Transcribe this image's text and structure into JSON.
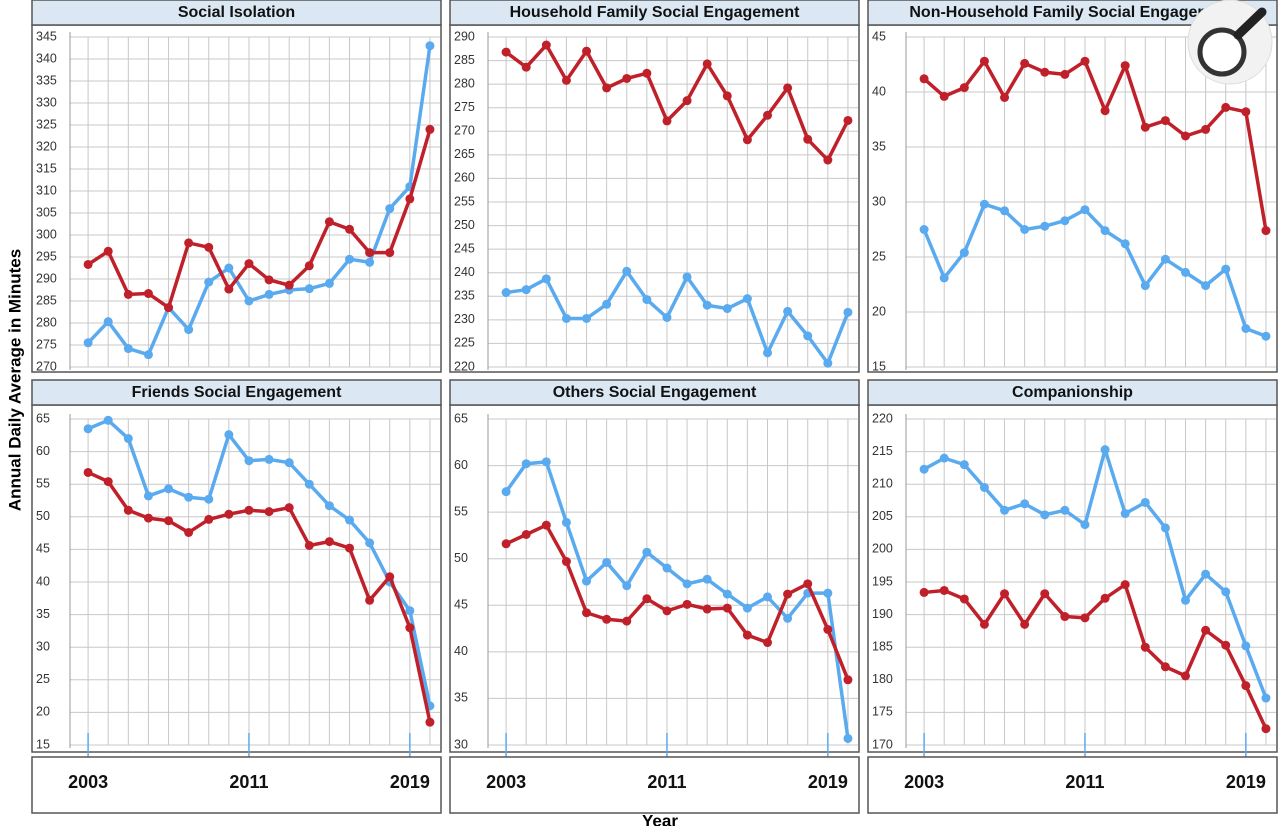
{
  "ylabel": "Annual Daily Average in Minutes",
  "xlabel": "Year",
  "chart_data": [
    {
      "type": "line",
      "title": "Social Isolation",
      "x": [
        2003,
        2004,
        2005,
        2006,
        2007,
        2008,
        2009,
        2010,
        2011,
        2012,
        2013,
        2014,
        2015,
        2016,
        2017,
        2018,
        2019,
        2020
      ],
      "xlim": [
        2002.1,
        2020.5
      ],
      "ylim": [
        270,
        345
      ],
      "yticks": [
        270,
        275,
        280,
        285,
        290,
        295,
        300,
        305,
        310,
        315,
        320,
        325,
        330,
        335,
        340,
        345
      ],
      "grid": true,
      "series": [
        {
          "color": "#5aaaf0",
          "values": [
            275.5,
            280.3,
            274.2,
            272.8,
            283.5,
            278.5,
            289.3,
            292.5,
            285,
            286.5,
            287.5,
            287.8,
            289,
            294.5,
            293.8,
            306,
            311,
            343
          ]
        },
        {
          "color": "#c0202a",
          "values": [
            293.3,
            296.3,
            286.5,
            286.7,
            283.5,
            298.2,
            297.2,
            287.7,
            293.5,
            289.8,
            288.6,
            293,
            303,
            301.3,
            296,
            296,
            308.2,
            324
          ]
        }
      ]
    },
    {
      "type": "line",
      "title": "Household Family Social Engagement",
      "x": [
        2003,
        2004,
        2005,
        2006,
        2007,
        2008,
        2009,
        2010,
        2011,
        2012,
        2013,
        2014,
        2015,
        2016,
        2017,
        2018,
        2019,
        2020
      ],
      "xlim": [
        2002.1,
        2020.5
      ],
      "ylim": [
        220,
        290
      ],
      "yticks": [
        220,
        225,
        230,
        235,
        240,
        245,
        250,
        255,
        260,
        265,
        270,
        275,
        280,
        285,
        290
      ],
      "grid": true,
      "series": [
        {
          "color": "#5aaaf0",
          "values": [
            235.8,
            236.4,
            238.7,
            230.3,
            230.3,
            233.3,
            240.3,
            234.3,
            230.5,
            239.1,
            233.1,
            232.4,
            234.5,
            223,
            231.8,
            226.6,
            220.8,
            231.6
          ]
        },
        {
          "color": "#c0202a",
          "values": [
            286.8,
            283.6,
            288.3,
            280.8,
            287,
            279.2,
            281.2,
            282.3,
            272.2,
            276.5,
            284.3,
            277.5,
            268.2,
            273.4,
            279.2,
            268.3,
            263.9,
            272.3
          ]
        }
      ]
    },
    {
      "type": "line",
      "title": "Non-Household Family Social Engagement",
      "x": [
        2003,
        2004,
        2005,
        2006,
        2007,
        2008,
        2009,
        2010,
        2011,
        2012,
        2013,
        2014,
        2015,
        2016,
        2017,
        2018,
        2019,
        2020
      ],
      "xlim": [
        2002.1,
        2020.5
      ],
      "ylim": [
        15,
        45
      ],
      "yticks": [
        15,
        20,
        25,
        30,
        35,
        40,
        45
      ],
      "grid": true,
      "series": [
        {
          "color": "#5aaaf0",
          "values": [
            27.5,
            23.1,
            25.4,
            29.8,
            29.2,
            27.5,
            27.8,
            28.3,
            29.3,
            27.4,
            26.2,
            22.4,
            24.8,
            23.6,
            22.4,
            23.9,
            18.5,
            17.8
          ]
        },
        {
          "color": "#c0202a",
          "values": [
            41.2,
            39.6,
            40.4,
            42.8,
            39.5,
            42.6,
            41.8,
            41.6,
            42.8,
            38.3,
            42.4,
            36.8,
            37.4,
            36,
            36.6,
            38.6,
            38.2,
            27.4
          ]
        }
      ]
    },
    {
      "type": "line",
      "title": "Friends Social Engagement",
      "x": [
        2003,
        2004,
        2005,
        2006,
        2007,
        2008,
        2009,
        2010,
        2011,
        2012,
        2013,
        2014,
        2015,
        2016,
        2017,
        2018,
        2019,
        2020
      ],
      "xlim": [
        2002.1,
        2020.5
      ],
      "xticks": [
        2003,
        2011,
        2019
      ],
      "ylim": [
        15,
        65
      ],
      "yticks": [
        15,
        20,
        25,
        30,
        35,
        40,
        45,
        50,
        55,
        60,
        65
      ],
      "grid": true,
      "series": [
        {
          "color": "#5aaaf0",
          "values": [
            63.5,
            64.8,
            62,
            53.2,
            54.3,
            53,
            52.7,
            62.6,
            58.6,
            58.8,
            58.3,
            55,
            51.7,
            49.5,
            46,
            40,
            35.6,
            21
          ]
        },
        {
          "color": "#c0202a",
          "values": [
            56.8,
            55.4,
            51,
            49.8,
            49.4,
            47.6,
            49.6,
            50.4,
            51,
            50.8,
            51.4,
            45.6,
            46.2,
            45.2,
            37.2,
            40.8,
            33,
            18.5
          ]
        }
      ]
    },
    {
      "type": "line",
      "title": "Others Social Engagement",
      "x": [
        2003,
        2004,
        2005,
        2006,
        2007,
        2008,
        2009,
        2010,
        2011,
        2012,
        2013,
        2014,
        2015,
        2016,
        2017,
        2018,
        2019,
        2020
      ],
      "xlim": [
        2002.1,
        2020.5
      ],
      "xticks": [
        2003,
        2011,
        2019
      ],
      "ylim": [
        30,
        65
      ],
      "yticks": [
        30,
        35,
        40,
        45,
        50,
        55,
        60,
        65
      ],
      "grid": true,
      "series": [
        {
          "color": "#5aaaf0",
          "values": [
            57.2,
            60.2,
            60.4,
            53.9,
            47.6,
            49.6,
            47.1,
            50.7,
            49,
            47.3,
            47.8,
            46.2,
            44.7,
            45.9,
            43.6,
            46.3,
            46.3,
            30.7
          ]
        },
        {
          "color": "#c0202a",
          "values": [
            51.6,
            52.6,
            53.6,
            49.7,
            44.2,
            43.5,
            43.3,
            45.7,
            44.4,
            45.1,
            44.6,
            44.7,
            41.8,
            41,
            46.2,
            47.3,
            42.4,
            37
          ]
        }
      ]
    },
    {
      "type": "line",
      "title": "Companionship",
      "x": [
        2003,
        2004,
        2005,
        2006,
        2007,
        2008,
        2009,
        2010,
        2011,
        2012,
        2013,
        2014,
        2015,
        2016,
        2017,
        2018,
        2019,
        2020
      ],
      "xlim": [
        2002.1,
        2020.5
      ],
      "xticks": [
        2003,
        2011,
        2019
      ],
      "ylim": [
        170,
        220
      ],
      "yticks": [
        170,
        175,
        180,
        185,
        190,
        195,
        200,
        205,
        210,
        215,
        220
      ],
      "grid": true,
      "series": [
        {
          "color": "#5aaaf0",
          "values": [
            212.3,
            214,
            213,
            209.5,
            206,
            207,
            205.3,
            206,
            203.8,
            215.3,
            205.5,
            207.2,
            203.3,
            192.2,
            196.2,
            193.5,
            185.2,
            177.2
          ]
        },
        {
          "color": "#c0202a",
          "values": [
            193.4,
            193.7,
            192.4,
            188.5,
            193.2,
            188.5,
            193.2,
            189.7,
            189.5,
            192.5,
            194.6,
            185,
            182,
            180.6,
            187.6,
            185.3,
            179.1,
            172.5
          ]
        }
      ]
    }
  ]
}
